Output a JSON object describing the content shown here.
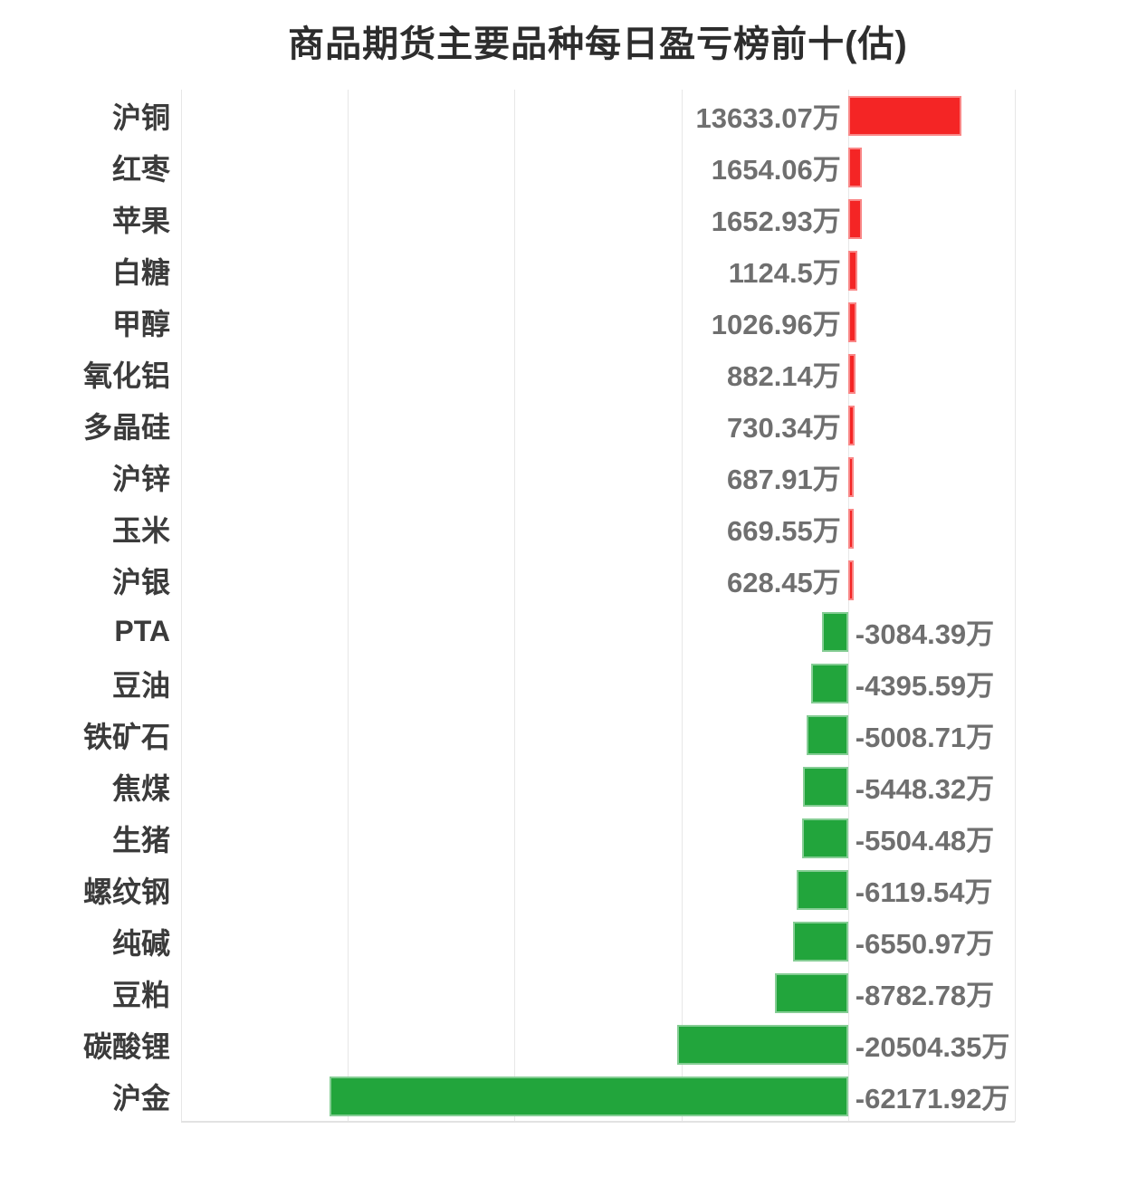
{
  "title": "商品期货主要品种每日盈亏榜前十(估)",
  "colors": {
    "positive_bar": "#f42525",
    "negative_bar": "#22a53c",
    "title_text": "#2d2d2d",
    "category_text": "#3b3b3b",
    "value_text": "#6f6f6f",
    "gridline": "#e7e7e7",
    "axis_line": "#e2e2e2",
    "background": "#ffffff"
  },
  "chart_data": {
    "type": "bar",
    "orientation": "horizontal",
    "title": "商品期货主要品种每日盈亏榜前十(估)",
    "unit": "万",
    "xlim": [
      -80000,
      20000
    ],
    "grid_step": 20000,
    "grid": true,
    "legend": false,
    "axis_tick_labels_visible": false,
    "categories": [
      "沪铜",
      "红枣",
      "苹果",
      "白糖",
      "甲醇",
      "氧化铝",
      "多晶硅",
      "沪锌",
      "玉米",
      "沪银",
      "PTA",
      "豆油",
      "铁矿石",
      "焦煤",
      "生猪",
      "螺纹钢",
      "纯碱",
      "豆粕",
      "碳酸锂",
      "沪金"
    ],
    "values": [
      13633.07,
      1654.06,
      1652.93,
      1124.5,
      1026.96,
      882.14,
      730.34,
      687.91,
      669.55,
      628.45,
      -3084.39,
      -4395.59,
      -5008.71,
      -5448.32,
      -5504.48,
      -6119.54,
      -6550.97,
      -8782.78,
      -20504.35,
      -62171.92
    ],
    "value_labels": [
      "13633.07万",
      "1654.06万",
      "1652.93万",
      "1124.5万",
      "1026.96万",
      "882.14万",
      "730.34万",
      "687.91万",
      "669.55万",
      "628.45万",
      "-3084.39万",
      "-4395.59万",
      "-5008.71万",
      "-5448.32万",
      "-5504.48万",
      "-6119.54万",
      "-6550.97万",
      "-8782.78万",
      "-20504.35万",
      "-62171.92万"
    ]
  }
}
